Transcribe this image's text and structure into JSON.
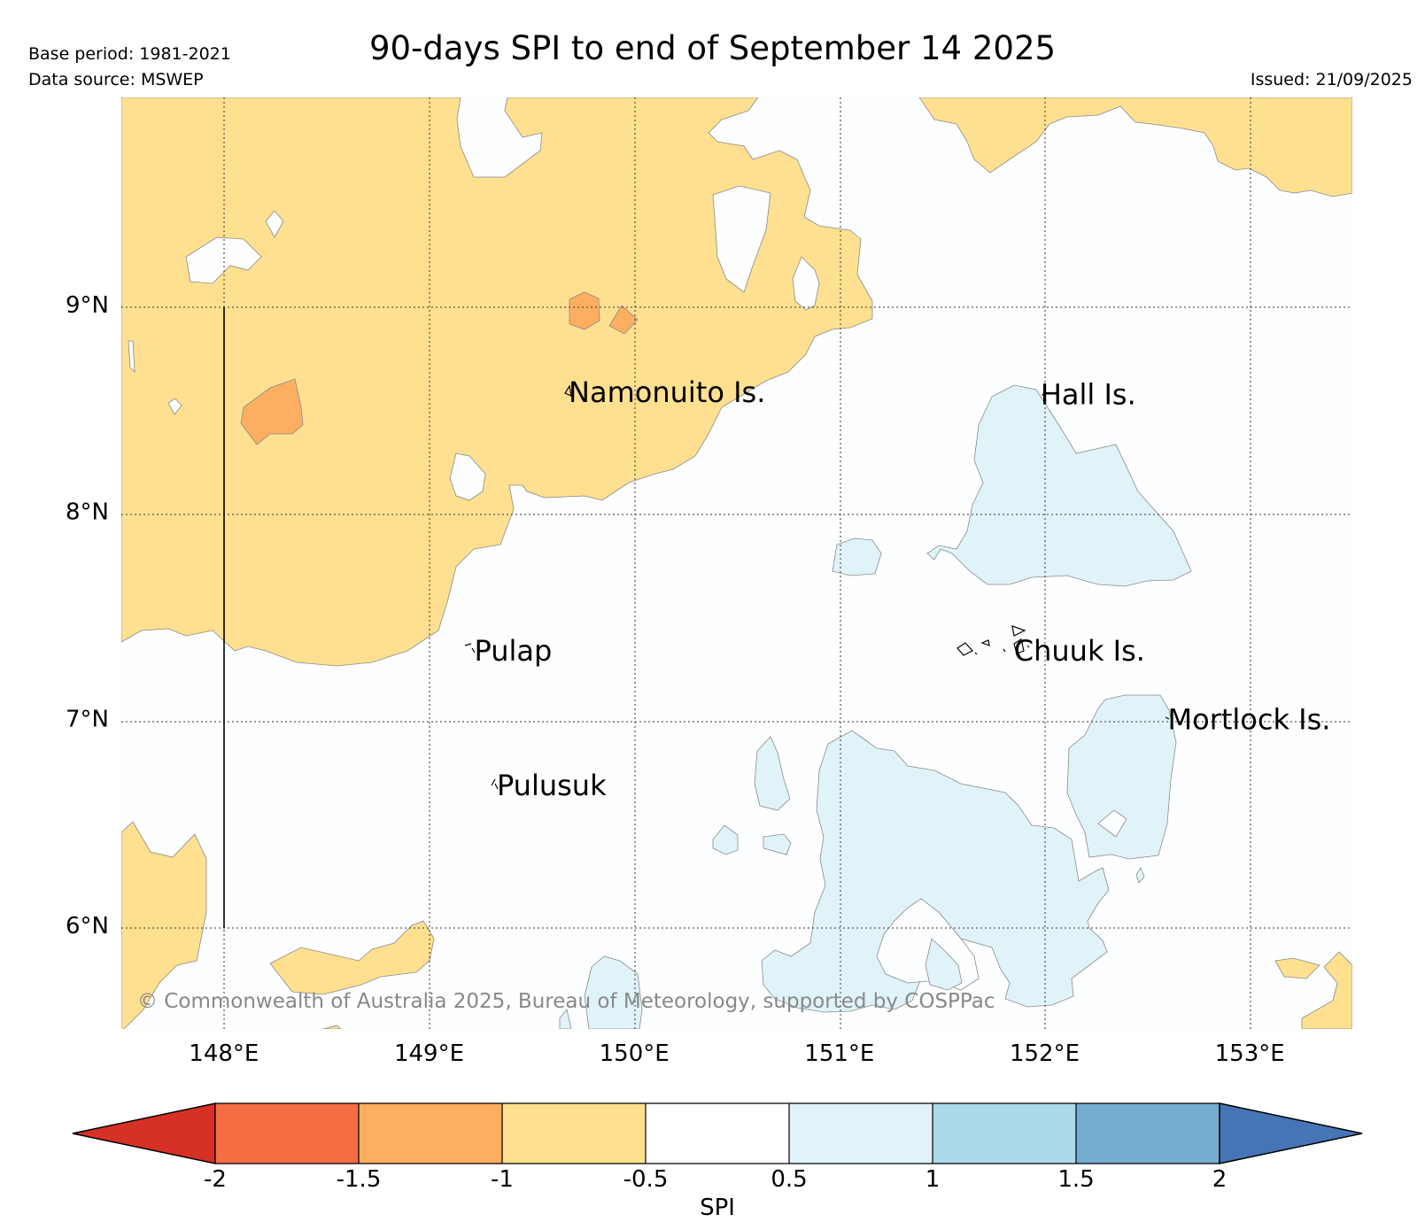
{
  "header": {
    "base_period": "Base period: 1981-2021",
    "data_source": "Data source: MSWEP",
    "title": "90-days SPI to end of September 14 2025",
    "issued": "Issued: 21/09/2025"
  },
  "map": {
    "extent": {
      "lon_min": 147.5,
      "lon_max": 153.5,
      "lat_min": 5.5,
      "lat_max": 10.0
    },
    "lat_ticks": [
      {
        "value": 9,
        "label": "9°N"
      },
      {
        "value": 8,
        "label": "8°N"
      },
      {
        "value": 7,
        "label": "7°N"
      },
      {
        "value": 6,
        "label": "6°N"
      }
    ],
    "lon_ticks": [
      {
        "value": 148,
        "label": "148°E"
      },
      {
        "value": 149,
        "label": "149°E"
      },
      {
        "value": 150,
        "label": "150°E"
      },
      {
        "value": 151,
        "label": "151°E"
      },
      {
        "value": 152,
        "label": "152°E"
      },
      {
        "value": 153,
        "label": "153°E"
      }
    ],
    "islands": [
      {
        "name": "Namonuito Is.",
        "lon": 149.68,
        "lat": 8.58
      },
      {
        "name": "Hall Is.",
        "lon": 151.98,
        "lat": 8.57
      },
      {
        "name": "Pulap",
        "lon": 149.22,
        "lat": 7.33
      },
      {
        "name": "Chuuk Is.",
        "lon": 151.85,
        "lat": 7.33
      },
      {
        "name": "Mortlock Is.",
        "lon": 152.6,
        "lat": 7.0
      },
      {
        "name": "Pulusuk",
        "lon": 149.33,
        "lat": 6.68
      }
    ],
    "copyright": "© Commonwealth of Australia 2025, Bureau of Meteorology, supported by COSPPac"
  },
  "colorbar": {
    "label": "SPI",
    "ticks": [
      "-2",
      "-1.5",
      "-1",
      "-0.5",
      "0.5",
      "1",
      "1.5",
      "2"
    ],
    "colors": {
      "below_min": "#d73027",
      "bins": [
        "#f46d43",
        "#fdae61",
        "#fee090",
        "#ffffff",
        "#e0f3f8",
        "#abd9e9",
        "#74add1"
      ],
      "above_max": "#4575b4"
    }
  }
}
